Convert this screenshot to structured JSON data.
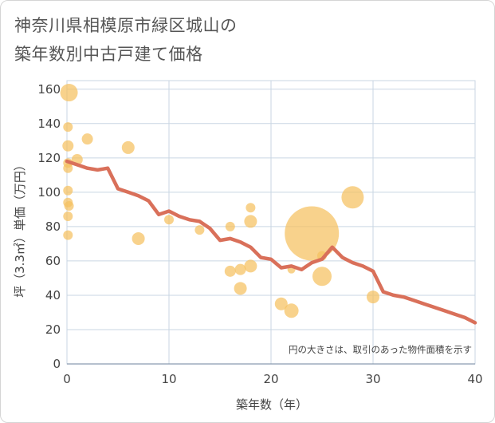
{
  "title": "神奈川県相模原市緑区城山の\n築年数別中古戸建て価格",
  "chart_data": {
    "type": "scatter",
    "title": "神奈川県相模原市緑区城山の築年数別中古戸建て価格",
    "xlabel": "築年数（年）",
    "ylabel": "坪（3.3㎡）単価（万円）",
    "xlim": [
      0,
      40
    ],
    "ylim": [
      0,
      165
    ],
    "xticks": [
      0,
      10,
      20,
      30,
      40
    ],
    "yticks": [
      0,
      20,
      40,
      60,
      80,
      100,
      120,
      140,
      160
    ],
    "note": "円の大きさは、取引のあった物件面積を示す",
    "colors": {
      "bubble": "#f5c05f",
      "trend": "#d9705a",
      "grid": "#c9d6e3"
    },
    "bubbles": [
      {
        "x": 0.2,
        "y": 158,
        "size": 11
      },
      {
        "x": 0.1,
        "y": 138,
        "size": 6
      },
      {
        "x": 0.1,
        "y": 127,
        "size": 7
      },
      {
        "x": 0.1,
        "y": 117,
        "size": 6
      },
      {
        "x": 0.1,
        "y": 114,
        "size": 6
      },
      {
        "x": 1.0,
        "y": 119,
        "size": 7
      },
      {
        "x": 0.1,
        "y": 101,
        "size": 6
      },
      {
        "x": 0.1,
        "y": 94,
        "size": 6
      },
      {
        "x": 0.2,
        "y": 92,
        "size": 6
      },
      {
        "x": 0.1,
        "y": 86,
        "size": 6
      },
      {
        "x": 0.1,
        "y": 75,
        "size": 6
      },
      {
        "x": 2.0,
        "y": 131,
        "size": 7
      },
      {
        "x": 6.0,
        "y": 126,
        "size": 8
      },
      {
        "x": 7.0,
        "y": 73,
        "size": 8
      },
      {
        "x": 10.0,
        "y": 84,
        "size": 6
      },
      {
        "x": 13.0,
        "y": 78,
        "size": 6
      },
      {
        "x": 16.0,
        "y": 80,
        "size": 6
      },
      {
        "x": 16.0,
        "y": 54,
        "size": 7
      },
      {
        "x": 17.0,
        "y": 55,
        "size": 7
      },
      {
        "x": 17.0,
        "y": 44,
        "size": 8
      },
      {
        "x": 18.0,
        "y": 91,
        "size": 6
      },
      {
        "x": 18.0,
        "y": 83,
        "size": 8
      },
      {
        "x": 18.0,
        "y": 57,
        "size": 8
      },
      {
        "x": 21.0,
        "y": 35,
        "size": 8
      },
      {
        "x": 22.0,
        "y": 31,
        "size": 9
      },
      {
        "x": 22.0,
        "y": 55,
        "size": 5
      },
      {
        "x": 24.0,
        "y": 76,
        "size": 34
      },
      {
        "x": 25.0,
        "y": 63,
        "size": 6
      },
      {
        "x": 25.0,
        "y": 51,
        "size": 12
      },
      {
        "x": 28.0,
        "y": 97,
        "size": 14
      },
      {
        "x": 30.0,
        "y": 39,
        "size": 8
      }
    ],
    "trend": {
      "x": [
        0,
        1,
        2,
        3,
        4,
        5,
        6,
        7,
        8,
        9,
        10,
        11,
        12,
        13,
        14,
        15,
        16,
        17,
        18,
        19,
        20,
        21,
        22,
        23,
        24,
        25,
        26,
        27,
        28,
        29,
        30,
        31,
        32,
        33,
        34,
        35,
        36,
        37,
        38,
        39,
        40
      ],
      "y": [
        118,
        116,
        114,
        113,
        114,
        102,
        100,
        98,
        95,
        87,
        89,
        86,
        84,
        83,
        79,
        72,
        73,
        71,
        68,
        62,
        61,
        56,
        57,
        55,
        59,
        61,
        68,
        62,
        59,
        57,
        54,
        42,
        40,
        39,
        37,
        35,
        33,
        31,
        29,
        27,
        24
      ]
    }
  }
}
